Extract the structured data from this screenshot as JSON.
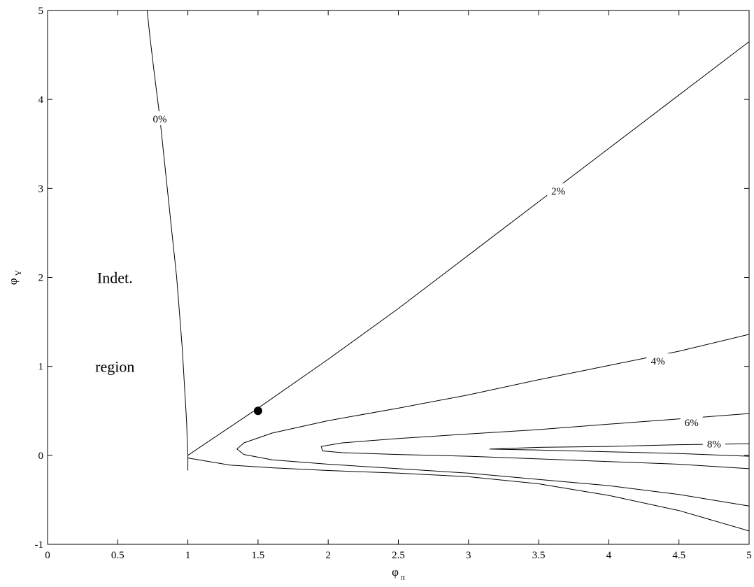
{
  "chart_data": {
    "type": "line",
    "title": "",
    "xlabel": "φ",
    "xlabel_sub": "π",
    "ylabel": "φ",
    "ylabel_sub": "Y",
    "xlim": [
      0,
      5
    ],
    "ylim": [
      -1,
      5
    ],
    "xticks": [
      "0",
      "0.5",
      "1",
      "1.5",
      "2",
      "2.5",
      "3",
      "3.5",
      "4",
      "4.5",
      "5"
    ],
    "yticks": [
      "-1",
      "0",
      "1",
      "2",
      "3",
      "4",
      "5"
    ],
    "grid": false,
    "legend": "none",
    "contours": [
      {
        "label": "0%",
        "label_at": [
          0.8,
          3.78
        ],
        "points": [
          [
            0.71,
            5.0
          ],
          [
            0.73,
            4.7
          ],
          [
            0.76,
            4.3
          ],
          [
            0.8,
            3.8
          ],
          [
            0.84,
            3.2
          ],
          [
            0.88,
            2.6
          ],
          [
            0.92,
            2.0
          ],
          [
            0.96,
            1.2
          ],
          [
            0.99,
            0.4
          ],
          [
            1.0,
            0.0
          ],
          [
            1.0,
            -0.17
          ]
        ]
      },
      {
        "label": "2%",
        "label_at": [
          3.64,
          2.97
        ],
        "points": [
          [
            1.0,
            0.0
          ],
          [
            1.5,
            0.53
          ],
          [
            2.0,
            1.08
          ],
          [
            2.5,
            1.65
          ],
          [
            3.0,
            2.25
          ],
          [
            3.5,
            2.85
          ],
          [
            4.0,
            3.45
          ],
          [
            4.5,
            4.05
          ],
          [
            5.0,
            4.65
          ]
        ]
      },
      {
        "label": "",
        "label_at": null,
        "points": [
          [
            1.0,
            -0.03
          ],
          [
            1.3,
            -0.11
          ],
          [
            1.6,
            -0.14
          ],
          [
            2.0,
            -0.17
          ],
          [
            2.5,
            -0.2
          ],
          [
            3.0,
            -0.24
          ],
          [
            3.5,
            -0.32
          ],
          [
            4.0,
            -0.45
          ],
          [
            4.5,
            -0.62
          ],
          [
            5.0,
            -0.85
          ]
        ]
      },
      {
        "label": "4%",
        "label_at": [
          4.35,
          1.06
        ],
        "points": [
          [
            5.0,
            1.36
          ],
          [
            4.5,
            1.17
          ],
          [
            4.0,
            1.01
          ],
          [
            3.5,
            0.85
          ],
          [
            3.0,
            0.68
          ],
          [
            2.5,
            0.53
          ],
          [
            2.0,
            0.39
          ],
          [
            1.6,
            0.25
          ],
          [
            1.4,
            0.14
          ],
          [
            1.35,
            0.07
          ],
          [
            1.4,
            0.01
          ],
          [
            1.6,
            -0.05
          ],
          [
            2.0,
            -0.1
          ],
          [
            2.5,
            -0.15
          ],
          [
            3.0,
            -0.2
          ],
          [
            3.5,
            -0.27
          ],
          [
            4.0,
            -0.34
          ],
          [
            4.5,
            -0.44
          ],
          [
            5.0,
            -0.57
          ]
        ]
      },
      {
        "label": "6%",
        "label_at": [
          4.59,
          0.37
        ],
        "points": [
          [
            5.0,
            0.47
          ],
          [
            4.5,
            0.41
          ],
          [
            4.0,
            0.35
          ],
          [
            3.5,
            0.29
          ],
          [
            3.0,
            0.24
          ],
          [
            2.5,
            0.19
          ],
          [
            2.1,
            0.14
          ],
          [
            1.95,
            0.1
          ],
          [
            1.96,
            0.05
          ],
          [
            2.1,
            0.03
          ],
          [
            2.5,
            0.01
          ],
          [
            3.0,
            -0.01
          ],
          [
            3.5,
            -0.04
          ],
          [
            4.0,
            -0.07
          ],
          [
            4.5,
            -0.1
          ],
          [
            5.0,
            -0.15
          ]
        ]
      },
      {
        "label": "8%",
        "label_at": [
          4.75,
          0.13
        ],
        "points": [
          [
            5.0,
            0.13
          ],
          [
            4.5,
            0.12
          ],
          [
            4.0,
            0.1
          ],
          [
            3.5,
            0.09
          ],
          [
            3.15,
            0.07
          ],
          [
            3.5,
            0.06
          ],
          [
            4.0,
            0.04
          ],
          [
            4.5,
            0.02
          ],
          [
            5.0,
            -0.01
          ]
        ]
      }
    ],
    "marker": {
      "x": 1.5,
      "y": 0.5
    },
    "annotations": [
      {
        "text": "Indet.",
        "x": 0.48,
        "y": 2.0
      },
      {
        "text": "region",
        "x": 0.48,
        "y": 1.0
      }
    ]
  }
}
